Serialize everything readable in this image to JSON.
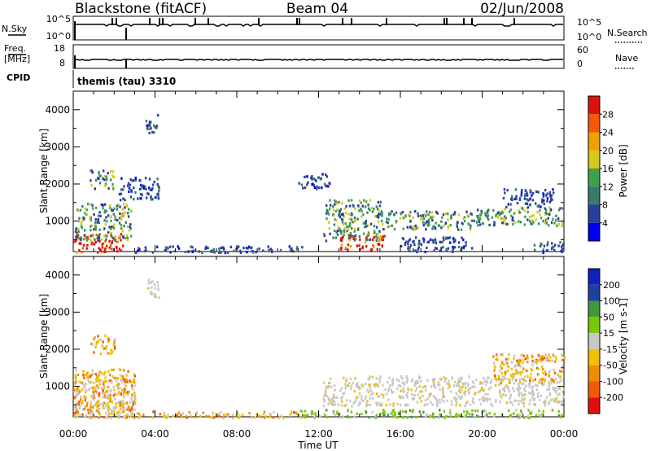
{
  "header": {
    "station": "Blackstone (fitACF)",
    "beam": "Beam 04",
    "date": "02/Jun/2008"
  },
  "top_panels": {
    "nsky": {
      "label": "N.Sky",
      "ticks": [
        "10^5",
        "10^0"
      ]
    },
    "nsearch": {
      "label": "N.Search",
      "ticks": [
        "10^5",
        "10^0"
      ]
    },
    "freq": {
      "label_line1": "Freq.",
      "label_line2": "[MHz]",
      "ticks": [
        "18",
        "8"
      ]
    },
    "nave": {
      "label": "Nave",
      "ticks": [
        "60",
        "0"
      ]
    },
    "cpid": {
      "label": "CPID",
      "program": "themis (tau) 3310"
    }
  },
  "colors": {
    "power_scale": [
      "#0000ee",
      "#2a3e9e",
      "#3a7a6a",
      "#3fa04a",
      "#d7c81c",
      "#f0a000",
      "#f05a00",
      "#e01010"
    ],
    "velocity_scale": [
      "#e01010",
      "#f05a00",
      "#f08c00",
      "#f0c000",
      "#c8c8c8",
      "#7ac800",
      "#3c9a3c",
      "#2040a0",
      "#1020c0"
    ]
  },
  "chart_data": [
    {
      "type": "heatmap",
      "title": "",
      "xlabel": "Time UT",
      "ylabel": "Slant Range [km]",
      "x_ticks": [
        "00:00",
        "04:00",
        "08:00",
        "12:00",
        "16:00",
        "20:00",
        "00:00"
      ],
      "xlim": [
        0,
        24
      ],
      "y_ticks": [
        "1000",
        "2000",
        "3000",
        "4000"
      ],
      "ylim": [
        180,
        4500
      ],
      "colorbar": {
        "label": "Power [dB]",
        "ticks": [
          "4",
          "8",
          "12",
          "16",
          "20",
          "24",
          "28"
        ],
        "range": [
          0,
          32
        ]
      },
      "scatter_regions": [
        {
          "t_start": 0.0,
          "t_end": 2.4,
          "range_low": 180,
          "range_high": 700,
          "level": "high"
        },
        {
          "t_start": 0.0,
          "t_end": 2.8,
          "range_low": 500,
          "range_high": 1500,
          "level": "mid"
        },
        {
          "t_start": 0.8,
          "t_end": 2.0,
          "range_low": 1900,
          "range_high": 2400,
          "level": "mid"
        },
        {
          "t_start": 2.2,
          "t_end": 4.2,
          "range_low": 1600,
          "range_high": 2200,
          "level": "low"
        },
        {
          "t_start": 3.5,
          "t_end": 4.2,
          "range_low": 3400,
          "range_high": 3900,
          "level": "low"
        },
        {
          "t_start": 2.8,
          "t_end": 11.5,
          "range_low": 180,
          "range_high": 350,
          "level": "low"
        },
        {
          "t_start": 11.0,
          "t_end": 12.6,
          "range_low": 1900,
          "range_high": 2300,
          "level": "low"
        },
        {
          "t_start": 12.2,
          "t_end": 15.0,
          "range_low": 500,
          "range_high": 1600,
          "level": "mid"
        },
        {
          "t_start": 13.0,
          "t_end": 15.2,
          "range_low": 250,
          "range_high": 650,
          "level": "high"
        },
        {
          "t_start": 15.0,
          "t_end": 19.6,
          "range_low": 800,
          "range_high": 1300,
          "level": "mid"
        },
        {
          "t_start": 16.0,
          "t_end": 19.5,
          "range_low": 200,
          "range_high": 600,
          "level": "low"
        },
        {
          "t_start": 19.6,
          "t_end": 24.0,
          "range_low": 900,
          "range_high": 1400,
          "level": "mid"
        },
        {
          "t_start": 21.0,
          "t_end": 23.5,
          "range_low": 1400,
          "range_high": 1900,
          "level": "low"
        },
        {
          "t_start": 22.5,
          "t_end": 24.0,
          "range_low": 180,
          "range_high": 500,
          "level": "low"
        }
      ]
    },
    {
      "type": "heatmap",
      "title": "",
      "xlabel": "Time UT",
      "ylabel": "Slant Range [km]",
      "x_ticks": [
        "00:00",
        "04:00",
        "08:00",
        "12:00",
        "16:00",
        "20:00",
        "00:00"
      ],
      "xlim": [
        0,
        24
      ],
      "y_ticks": [
        "1000",
        "2000",
        "3000",
        "4000"
      ],
      "ylim": [
        180,
        4500
      ],
      "colorbar": {
        "label": "Velocity [m s-1]",
        "ticks": [
          "200",
          "100",
          "50",
          "15",
          "-15",
          "-50",
          "-100",
          "-200"
        ],
        "range": [
          -250,
          250
        ]
      },
      "scatter_regions": [
        {
          "t_start": 0.0,
          "t_end": 3.0,
          "range_low": 180,
          "range_high": 1200,
          "level": "ground"
        },
        {
          "t_start": 0.0,
          "t_end": 3.0,
          "range_low": 180,
          "range_high": 1500,
          "level": "negative"
        },
        {
          "t_start": 0.8,
          "t_end": 2.0,
          "range_low": 1900,
          "range_high": 2400,
          "level": "negative"
        },
        {
          "t_start": 3.5,
          "t_end": 4.2,
          "range_low": 3400,
          "range_high": 3900,
          "level": "ground"
        },
        {
          "t_start": 2.8,
          "t_end": 11.5,
          "range_low": 180,
          "range_high": 350,
          "level": "negative"
        },
        {
          "t_start": 11.0,
          "t_end": 24.0,
          "range_low": 180,
          "range_high": 400,
          "level": "positive"
        },
        {
          "t_start": 12.2,
          "t_end": 24.0,
          "range_low": 500,
          "range_high": 1300,
          "level": "ground"
        },
        {
          "t_start": 20.5,
          "t_end": 24.0,
          "range_low": 1100,
          "range_high": 1900,
          "level": "negative"
        }
      ]
    }
  ]
}
